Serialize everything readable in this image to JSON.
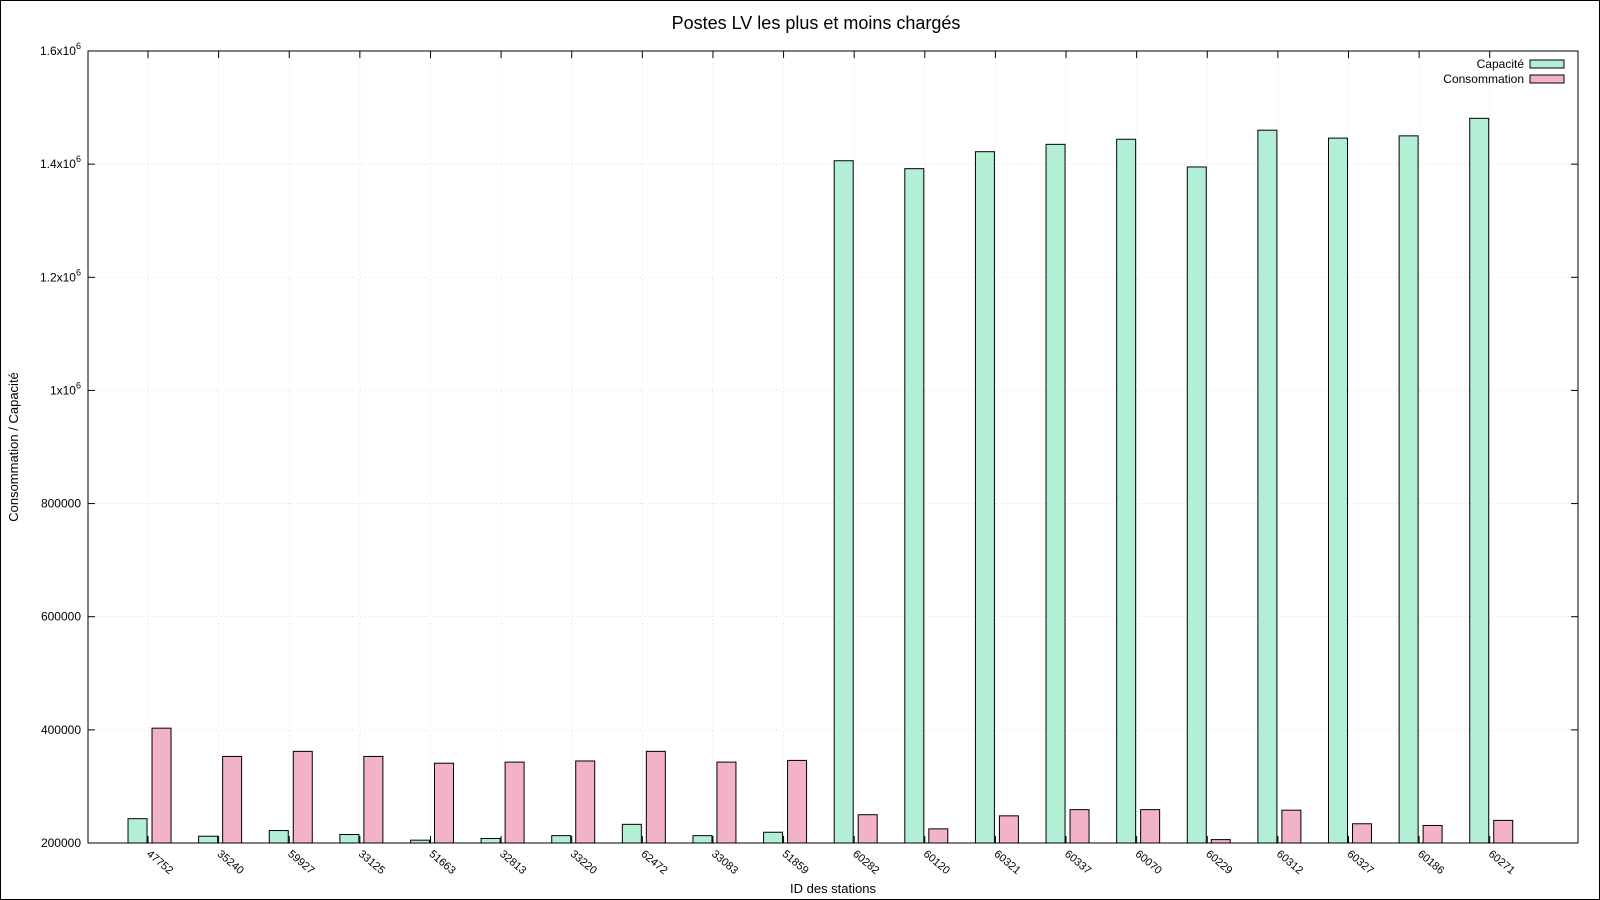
{
  "chart_data": {
    "type": "bar",
    "title": "Postes LV les plus et moins chargés",
    "xlabel": "ID des stations",
    "ylabel": "Consommation / Capacité",
    "ylim": [
      200000,
      1600000
    ],
    "yticks": [
      {
        "value": 200000,
        "label": "200000"
      },
      {
        "value": 400000,
        "label": "400000"
      },
      {
        "value": 600000,
        "label": "600000"
      },
      {
        "value": 800000,
        "label": "800000"
      },
      {
        "value": 1000000,
        "label": "1x10",
        "exp": "6"
      },
      {
        "value": 1200000,
        "label": "1.2x10",
        "exp": "6"
      },
      {
        "value": 1400000,
        "label": "1.4x10",
        "exp": "6"
      },
      {
        "value": 1600000,
        "label": "1.6x10",
        "exp": "6"
      }
    ],
    "grid": true,
    "legend_position": "top-right",
    "categories": [
      "47752",
      "35240",
      "59927",
      "33125",
      "51663",
      "32813",
      "33220",
      "62472",
      "33083",
      "51859",
      "60282",
      "60120",
      "60321",
      "60337",
      "60070",
      "60229",
      "60312",
      "60327",
      "60186",
      "60271"
    ],
    "series": [
      {
        "name": "Capacité",
        "color": "#b3efd4",
        "values": [
          243000,
          212000,
          222000,
          215000,
          205000,
          208000,
          213000,
          233000,
          213000,
          219000,
          1406000,
          1392000,
          1422000,
          1435000,
          1444000,
          1395000,
          1460000,
          1446000,
          1450000,
          1481000
        ]
      },
      {
        "name": "Consommation",
        "color": "#f2b3c9",
        "values": [
          403000,
          353000,
          362000,
          353000,
          341000,
          343000,
          345000,
          362000,
          343000,
          346000,
          250000,
          225000,
          248000,
          259000,
          259000,
          206000,
          258000,
          234000,
          231000,
          240000
        ]
      }
    ]
  }
}
